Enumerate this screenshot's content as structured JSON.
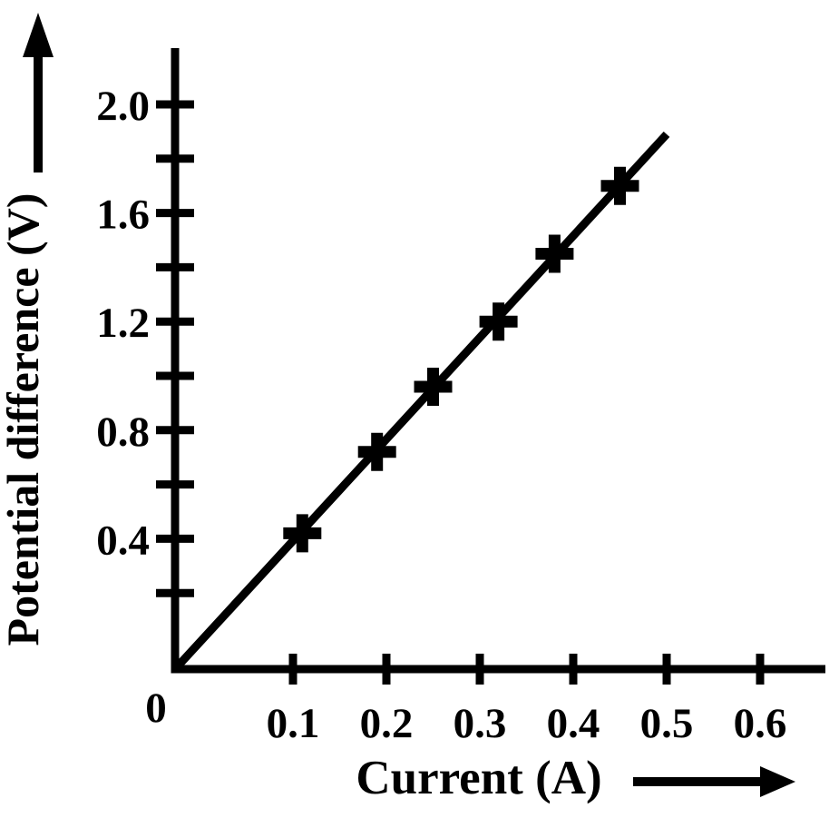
{
  "page": {
    "background": "#ffffff",
    "ink_color": "#000000"
  },
  "chart_data": {
    "type": "scatter",
    "title": "",
    "xlabel": "Current (A)",
    "ylabel": "Potential difference (V)",
    "x": [
      0.11,
      0.19,
      0.25,
      0.32,
      0.38,
      0.45
    ],
    "y": [
      0.42,
      0.72,
      0.96,
      1.2,
      1.45,
      1.7
    ],
    "fit_line": {
      "x_start": 0,
      "y_start": 0,
      "x_end": 0.5,
      "y_end": 1.89,
      "slope_v_per_a": 3.78
    },
    "x_tick_values": [
      0.1,
      0.2,
      0.3,
      0.4,
      0.5,
      0.6
    ],
    "x_tick_labels": [
      "0.1",
      "0.2",
      "0.3",
      "0.4",
      "0.5",
      "0.6"
    ],
    "y_tick_values": [
      0.4,
      0.8,
      1.2,
      1.6,
      2.0
    ],
    "y_tick_labels": [
      "0.4",
      "0.8",
      "1.2",
      "1.6",
      "2.0"
    ],
    "y_minor_tick_values": [
      0.2,
      0.6,
      1.0,
      1.4,
      1.8
    ],
    "origin_label": "0",
    "xlim": [
      0,
      0.66
    ],
    "ylim": [
      0,
      2.2
    ],
    "grid": false,
    "legend": false,
    "marker": "plus",
    "axis_arrows": {
      "x": "right",
      "y": "up"
    }
  }
}
